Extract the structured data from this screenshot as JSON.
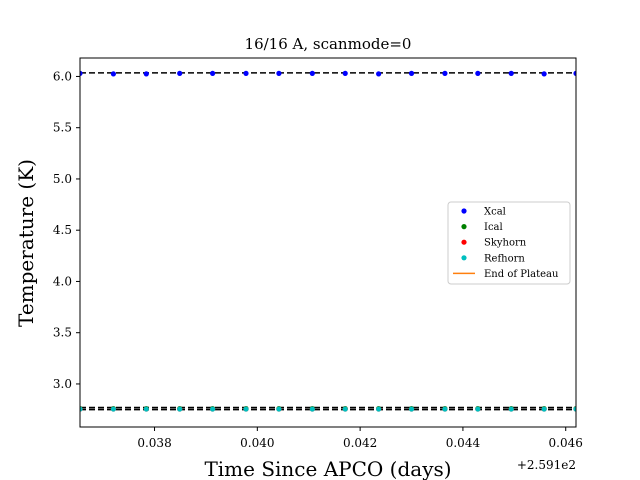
{
  "chart_data": {
    "type": "scatter",
    "title": "16/16 A, scanmode=0",
    "xlabel": "Time Since APCO (days)",
    "ylabel": "Temperature (K)",
    "x_offset_label": "+2.591e2",
    "xlim": [
      0.03655,
      0.0462
    ],
    "ylim": [
      2.58,
      6.18
    ],
    "x_ticks": [
      0.038,
      0.04,
      0.042,
      0.044,
      0.046
    ],
    "x_tick_labels": [
      "0.038",
      "0.040",
      "0.042",
      "0.044",
      "0.046"
    ],
    "y_ticks": [
      3.0,
      3.5,
      4.0,
      4.5,
      5.0,
      5.5,
      6.0
    ],
    "y_tick_labels": [
      "3.0",
      "3.5",
      "4.0",
      "4.5",
      "5.0",
      "5.5",
      "6.0"
    ],
    "x": [
      0.03655,
      0.0372,
      0.03784,
      0.03849,
      0.03913,
      0.03978,
      0.04042,
      0.04107,
      0.04171,
      0.04236,
      0.043,
      0.04365,
      0.04429,
      0.04494,
      0.04558,
      0.0462
    ],
    "series": [
      {
        "name": "Xcal",
        "color": "#0000ff",
        "values": [
          6.03,
          6.025,
          6.025,
          6.03,
          6.03,
          6.03,
          6.03,
          6.03,
          6.03,
          6.025,
          6.03,
          6.03,
          6.03,
          6.03,
          6.025,
          6.03
        ]
      },
      {
        "name": "Ical",
        "color": "#008000",
        "values": [
          2.76,
          2.76,
          2.76,
          2.76,
          2.76,
          2.76,
          2.76,
          2.76,
          2.76,
          2.76,
          2.76,
          2.76,
          2.76,
          2.76,
          2.76,
          2.76
        ]
      },
      {
        "name": "Skyhorn",
        "color": "#ff0000",
        "values": [
          2.755,
          2.755,
          2.755,
          2.755,
          2.755,
          2.755,
          2.755,
          2.755,
          2.755,
          2.755,
          2.755,
          2.755,
          2.755,
          2.755,
          2.755,
          2.755
        ]
      },
      {
        "name": "Refhorn",
        "color": "#00bfbf",
        "values": [
          2.755,
          2.755,
          2.755,
          2.755,
          2.755,
          2.755,
          2.755,
          2.755,
          2.755,
          2.755,
          2.755,
          2.755,
          2.755,
          2.755,
          2.755,
          2.755
        ]
      }
    ],
    "hlines": [
      {
        "y": 6.035,
        "color": "#000000",
        "style": "dashed"
      },
      {
        "y": 2.77,
        "color": "#000000",
        "style": "dashed"
      },
      {
        "y": 2.75,
        "color": "#000000",
        "style": "dashed"
      }
    ],
    "legend": {
      "placement": "center-right",
      "entries": [
        {
          "label": "Xcal",
          "marker": "dot",
          "color": "#0000ff"
        },
        {
          "label": "Ical",
          "marker": "dot",
          "color": "#008000"
        },
        {
          "label": "Skyhorn",
          "marker": "dot",
          "color": "#ff0000"
        },
        {
          "label": "Refhorn",
          "marker": "dot",
          "color": "#00bfbf"
        },
        {
          "label": "End of Plateau",
          "marker": "line",
          "color": "#ff7f0e"
        }
      ]
    },
    "grid": false
  }
}
